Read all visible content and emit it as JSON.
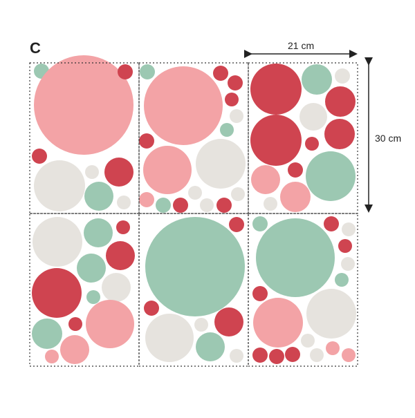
{
  "variant_label": "C",
  "dimensions": {
    "width_label": "21 cm",
    "height_label": "30 cm"
  },
  "colors": {
    "pink": "#f3a3a6",
    "red": "#cf4450",
    "mint": "#9cc8b2",
    "beige": "#e6e3de",
    "outline": "#333333"
  },
  "sheets": [
    {
      "id": "sheet-1",
      "row": 1,
      "col": 1
    },
    {
      "id": "sheet-2",
      "row": 1,
      "col": 2
    },
    {
      "id": "sheet-3",
      "row": 1,
      "col": 3
    },
    {
      "id": "sheet-4",
      "row": 2,
      "col": 1
    },
    {
      "id": "sheet-5",
      "row": 2,
      "col": 2
    },
    {
      "id": "sheet-6",
      "row": 2,
      "col": 3
    }
  ]
}
